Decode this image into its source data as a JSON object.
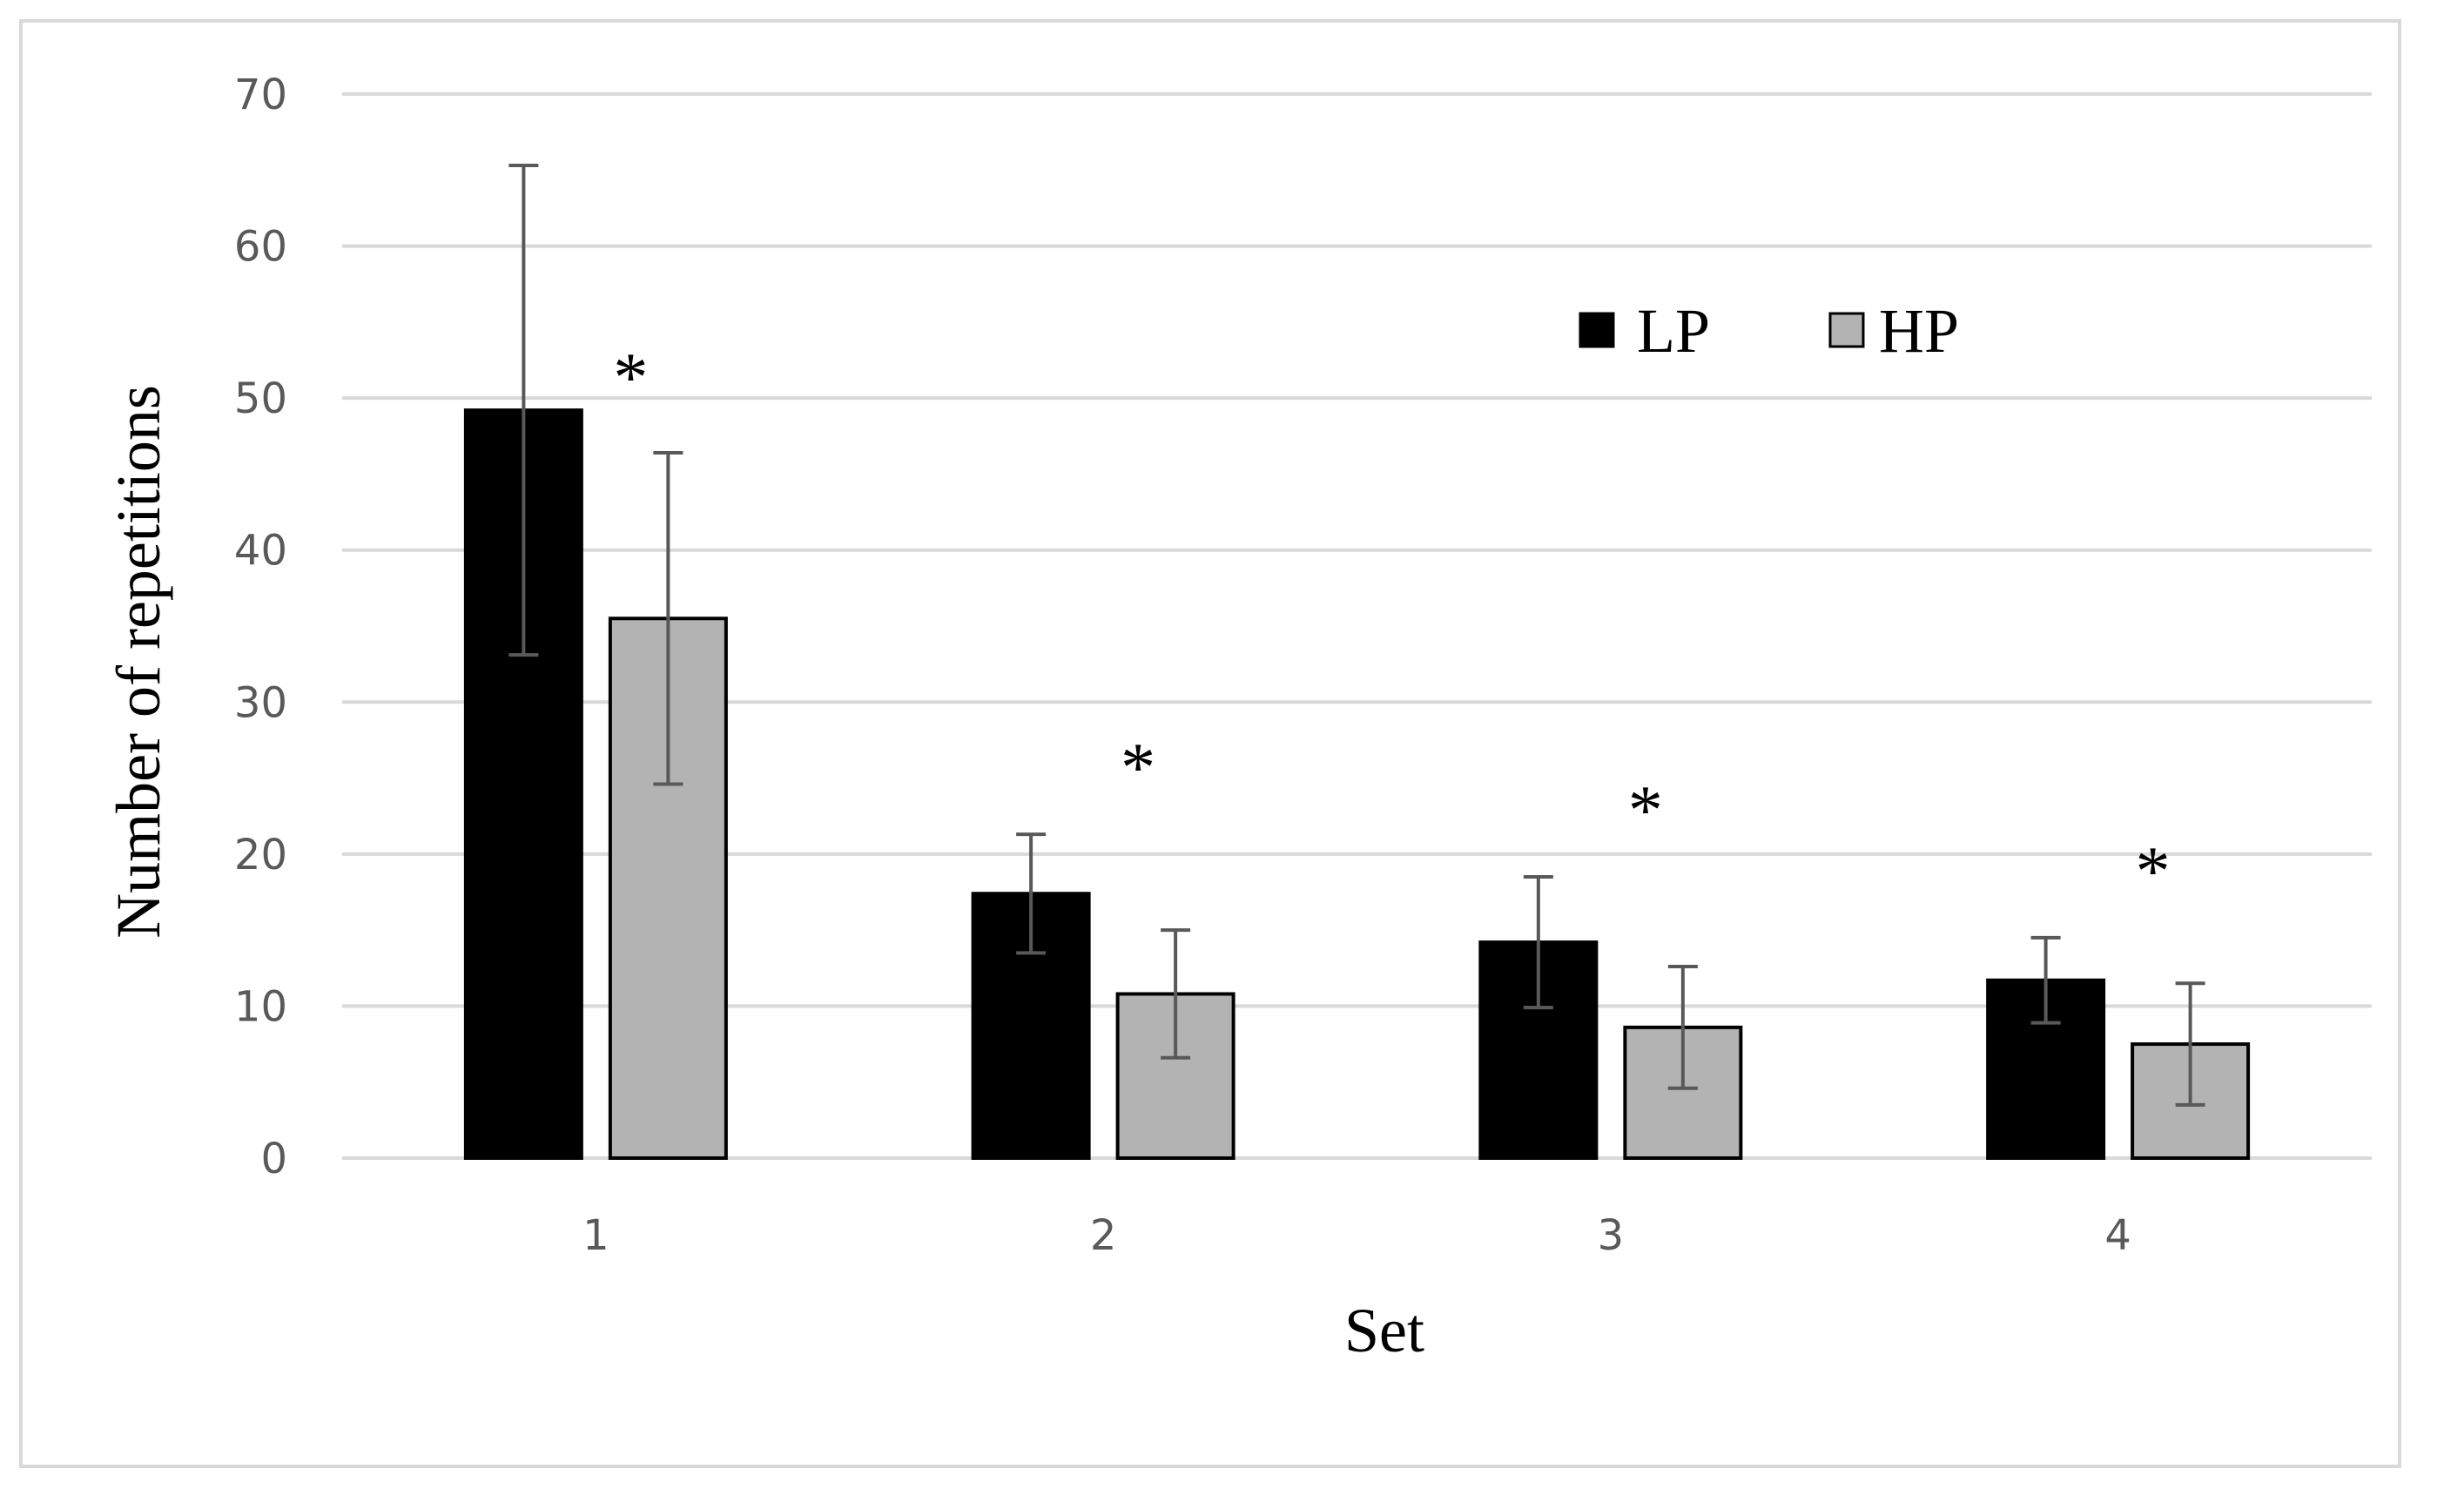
{
  "chart_data": {
    "type": "bar",
    "xlabel": "Set",
    "ylabel": "Number of repetitions",
    "categories": [
      "1",
      "2",
      "3",
      "4"
    ],
    "ylim": [
      0,
      70
    ],
    "yticks": [
      0,
      10,
      20,
      30,
      40,
      50,
      60,
      70
    ],
    "grid": true,
    "legend_position": "top-right",
    "series": [
      {
        "name": "LP",
        "color": "#000000",
        "values": [
          49.2,
          17.4,
          14.2,
          11.7
        ],
        "errors": [
          16.1,
          3.9,
          4.3,
          2.8
        ]
      },
      {
        "name": "HP",
        "color": "#b3b3b3",
        "values": [
          35.5,
          10.8,
          8.6,
          7.5
        ],
        "errors": [
          10.9,
          4.2,
          4.0,
          4.0
        ]
      }
    ],
    "annotations": [
      {
        "category": "1",
        "text": "*"
      },
      {
        "category": "2",
        "text": "*"
      },
      {
        "category": "3",
        "text": "*"
      },
      {
        "category": "4",
        "text": "*"
      }
    ]
  }
}
